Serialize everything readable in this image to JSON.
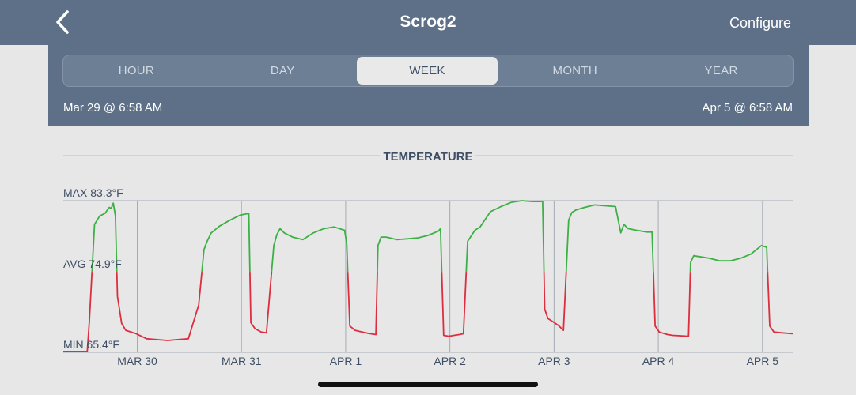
{
  "nav": {
    "back_icon": "chevron-left-icon",
    "title": "Scrog2",
    "configure_label": "Configure"
  },
  "range_tabs": [
    {
      "label": "HOUR",
      "active": false
    },
    {
      "label": "DAY",
      "active": false
    },
    {
      "label": "WEEK",
      "active": true
    },
    {
      "label": "MONTH",
      "active": false
    },
    {
      "label": "YEAR",
      "active": false
    }
  ],
  "range": {
    "start": "Mar 29 @ 6:58 AM",
    "end": "Apr 5 @ 6:58 AM"
  },
  "colors": {
    "header_bg": "#5d7087",
    "above_avg": "#3db045",
    "below_avg": "#dc2e3e"
  },
  "chart_data": {
    "type": "line",
    "title": "TEMPERATURE",
    "max_label": "MAX 83.3°F",
    "avg_label": "AVG 74.9°F",
    "min_label": "MIN 65.4°F",
    "max": 83.3,
    "avg": 74.9,
    "min": 65.4,
    "x_ticks": [
      "MAR 30",
      "MAR 31",
      "APR 1",
      "APR 2",
      "APR 3",
      "APR 4",
      "APR 5"
    ],
    "x_tick_days": [
      0.71,
      1.71,
      2.71,
      3.71,
      4.71,
      5.71,
      6.71
    ],
    "xlim_days": [
      0,
      7
    ],
    "ylim": [
      65.4,
      83.3
    ],
    "series": [
      {
        "x_days": [
          0,
          0.23,
          0.25,
          0.3,
          0.35,
          0.4,
          0.44,
          0.46,
          0.48,
          0.5,
          0.52,
          0.56,
          0.6,
          0.7,
          0.8,
          1.0,
          1.2,
          1.3,
          1.35,
          1.38,
          1.42,
          1.5,
          1.6,
          1.7,
          1.78,
          1.8,
          1.84,
          1.9,
          1.95,
          2.02,
          2.05,
          2.08,
          2.12,
          2.2,
          2.3,
          2.4,
          2.5,
          2.6,
          2.7,
          2.72,
          2.75,
          2.8,
          2.9,
          3.0,
          3.02,
          3.05,
          3.1,
          3.2,
          3.3,
          3.4,
          3.5,
          3.6,
          3.62,
          3.65,
          3.7,
          3.75,
          3.8,
          3.84,
          3.88,
          3.95,
          4.0,
          4.1,
          4.2,
          4.3,
          4.4,
          4.5,
          4.6,
          4.62,
          4.65,
          4.7,
          4.75,
          4.8,
          4.85,
          4.88,
          4.92,
          5.0,
          5.1,
          5.3,
          5.35,
          5.38,
          5.42,
          5.5,
          5.6,
          5.65,
          5.68,
          5.72,
          5.8,
          5.85,
          6.0,
          6.02,
          6.05,
          6.1,
          6.2,
          6.3,
          6.4,
          6.5,
          6.6,
          6.7,
          6.75,
          6.78,
          6.82,
          6.9,
          7.0
        ],
        "y": [
          65.5,
          65.5,
          69.0,
          80.5,
          81.5,
          81.8,
          82.5,
          82.4,
          83.0,
          81.5,
          72.0,
          68.8,
          68.0,
          67.6,
          67.0,
          66.8,
          67.0,
          71.0,
          77.5,
          78.5,
          79.5,
          80.3,
          81.0,
          81.6,
          81.8,
          68.9,
          68.2,
          67.8,
          67.7,
          78.0,
          79.3,
          80.0,
          79.5,
          79.0,
          78.7,
          79.5,
          80.0,
          80.2,
          79.8,
          78.2,
          68.5,
          68.0,
          67.7,
          67.5,
          78.0,
          79.0,
          79.0,
          78.7,
          78.8,
          78.9,
          79.2,
          79.7,
          80.0,
          67.4,
          67.3,
          67.4,
          67.5,
          67.6,
          78.5,
          79.8,
          80.2,
          82.0,
          82.6,
          83.1,
          83.3,
          83.2,
          83.2,
          70.5,
          69.4,
          69.0,
          68.6,
          68.0,
          81.0,
          81.9,
          82.2,
          82.5,
          82.8,
          82.6,
          79.5,
          80.5,
          80.0,
          79.8,
          79.6,
          79.6,
          68.5,
          67.8,
          67.5,
          67.4,
          67.3,
          76.0,
          76.8,
          76.7,
          76.5,
          76.2,
          76.2,
          76.5,
          77.0,
          78.0,
          77.8,
          68.5,
          67.8,
          67.7,
          67.6
        ]
      }
    ]
  }
}
